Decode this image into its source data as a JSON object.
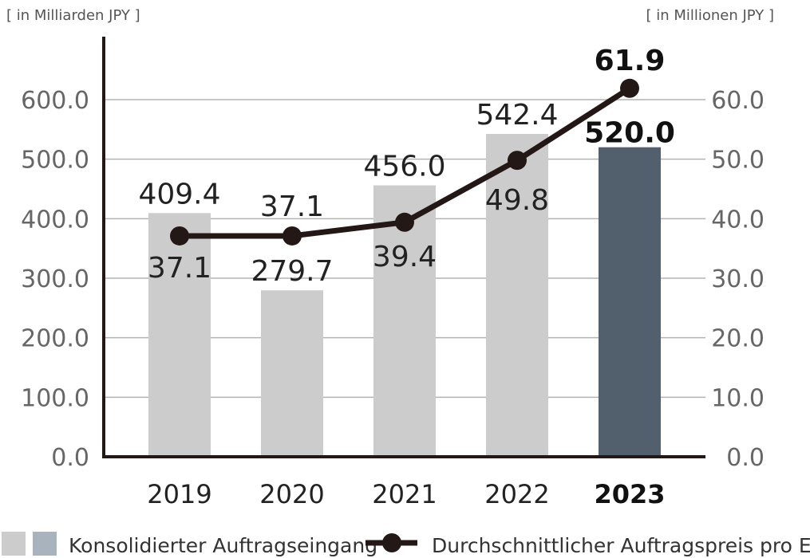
{
  "chart_data": {
    "type": "bar",
    "left_unit_label": "[ in Milliarden JPY ]",
    "right_unit_label": "[ in Millionen JPY ]",
    "categories": [
      "2019",
      "2020",
      "2021",
      "2022",
      "2023"
    ],
    "highlight_category": "2023",
    "y_left_ticks": [
      "0.0",
      "100.0",
      "200.0",
      "300.0",
      "400.0",
      "500.0",
      "600.0"
    ],
    "y_right_ticks": [
      "0.0",
      "10.0",
      "20.0",
      "30.0",
      "40.0",
      "50.0",
      "60.0"
    ],
    "ylim_left": [
      0,
      600
    ],
    "ylim_right": [
      0,
      60
    ],
    "grid": true,
    "legend_position": "bottom",
    "series": [
      {
        "name": "Konsolidierter Auftragseingang",
        "type": "bar",
        "axis": "left",
        "values": [
          409.4,
          279.7,
          456.0,
          542.4,
          520.0
        ],
        "labels": [
          "409.4",
          "279.7",
          "456.0",
          "542.4",
          "520.0"
        ],
        "color": "#cccccc",
        "highlight_color": "#525f6d"
      },
      {
        "name": "Durchschnittlicher Auftragspreis pro Einheit",
        "type": "line",
        "axis": "right",
        "values": [
          37.1,
          37.1,
          39.4,
          49.8,
          61.9
        ],
        "labels": [
          "37.1",
          "37.1",
          "39.4",
          "49.8",
          "61.9"
        ],
        "color": "#231815"
      }
    ],
    "legend_swatch_colors": [
      "#cccccc",
      "#a9b3bd"
    ]
  }
}
